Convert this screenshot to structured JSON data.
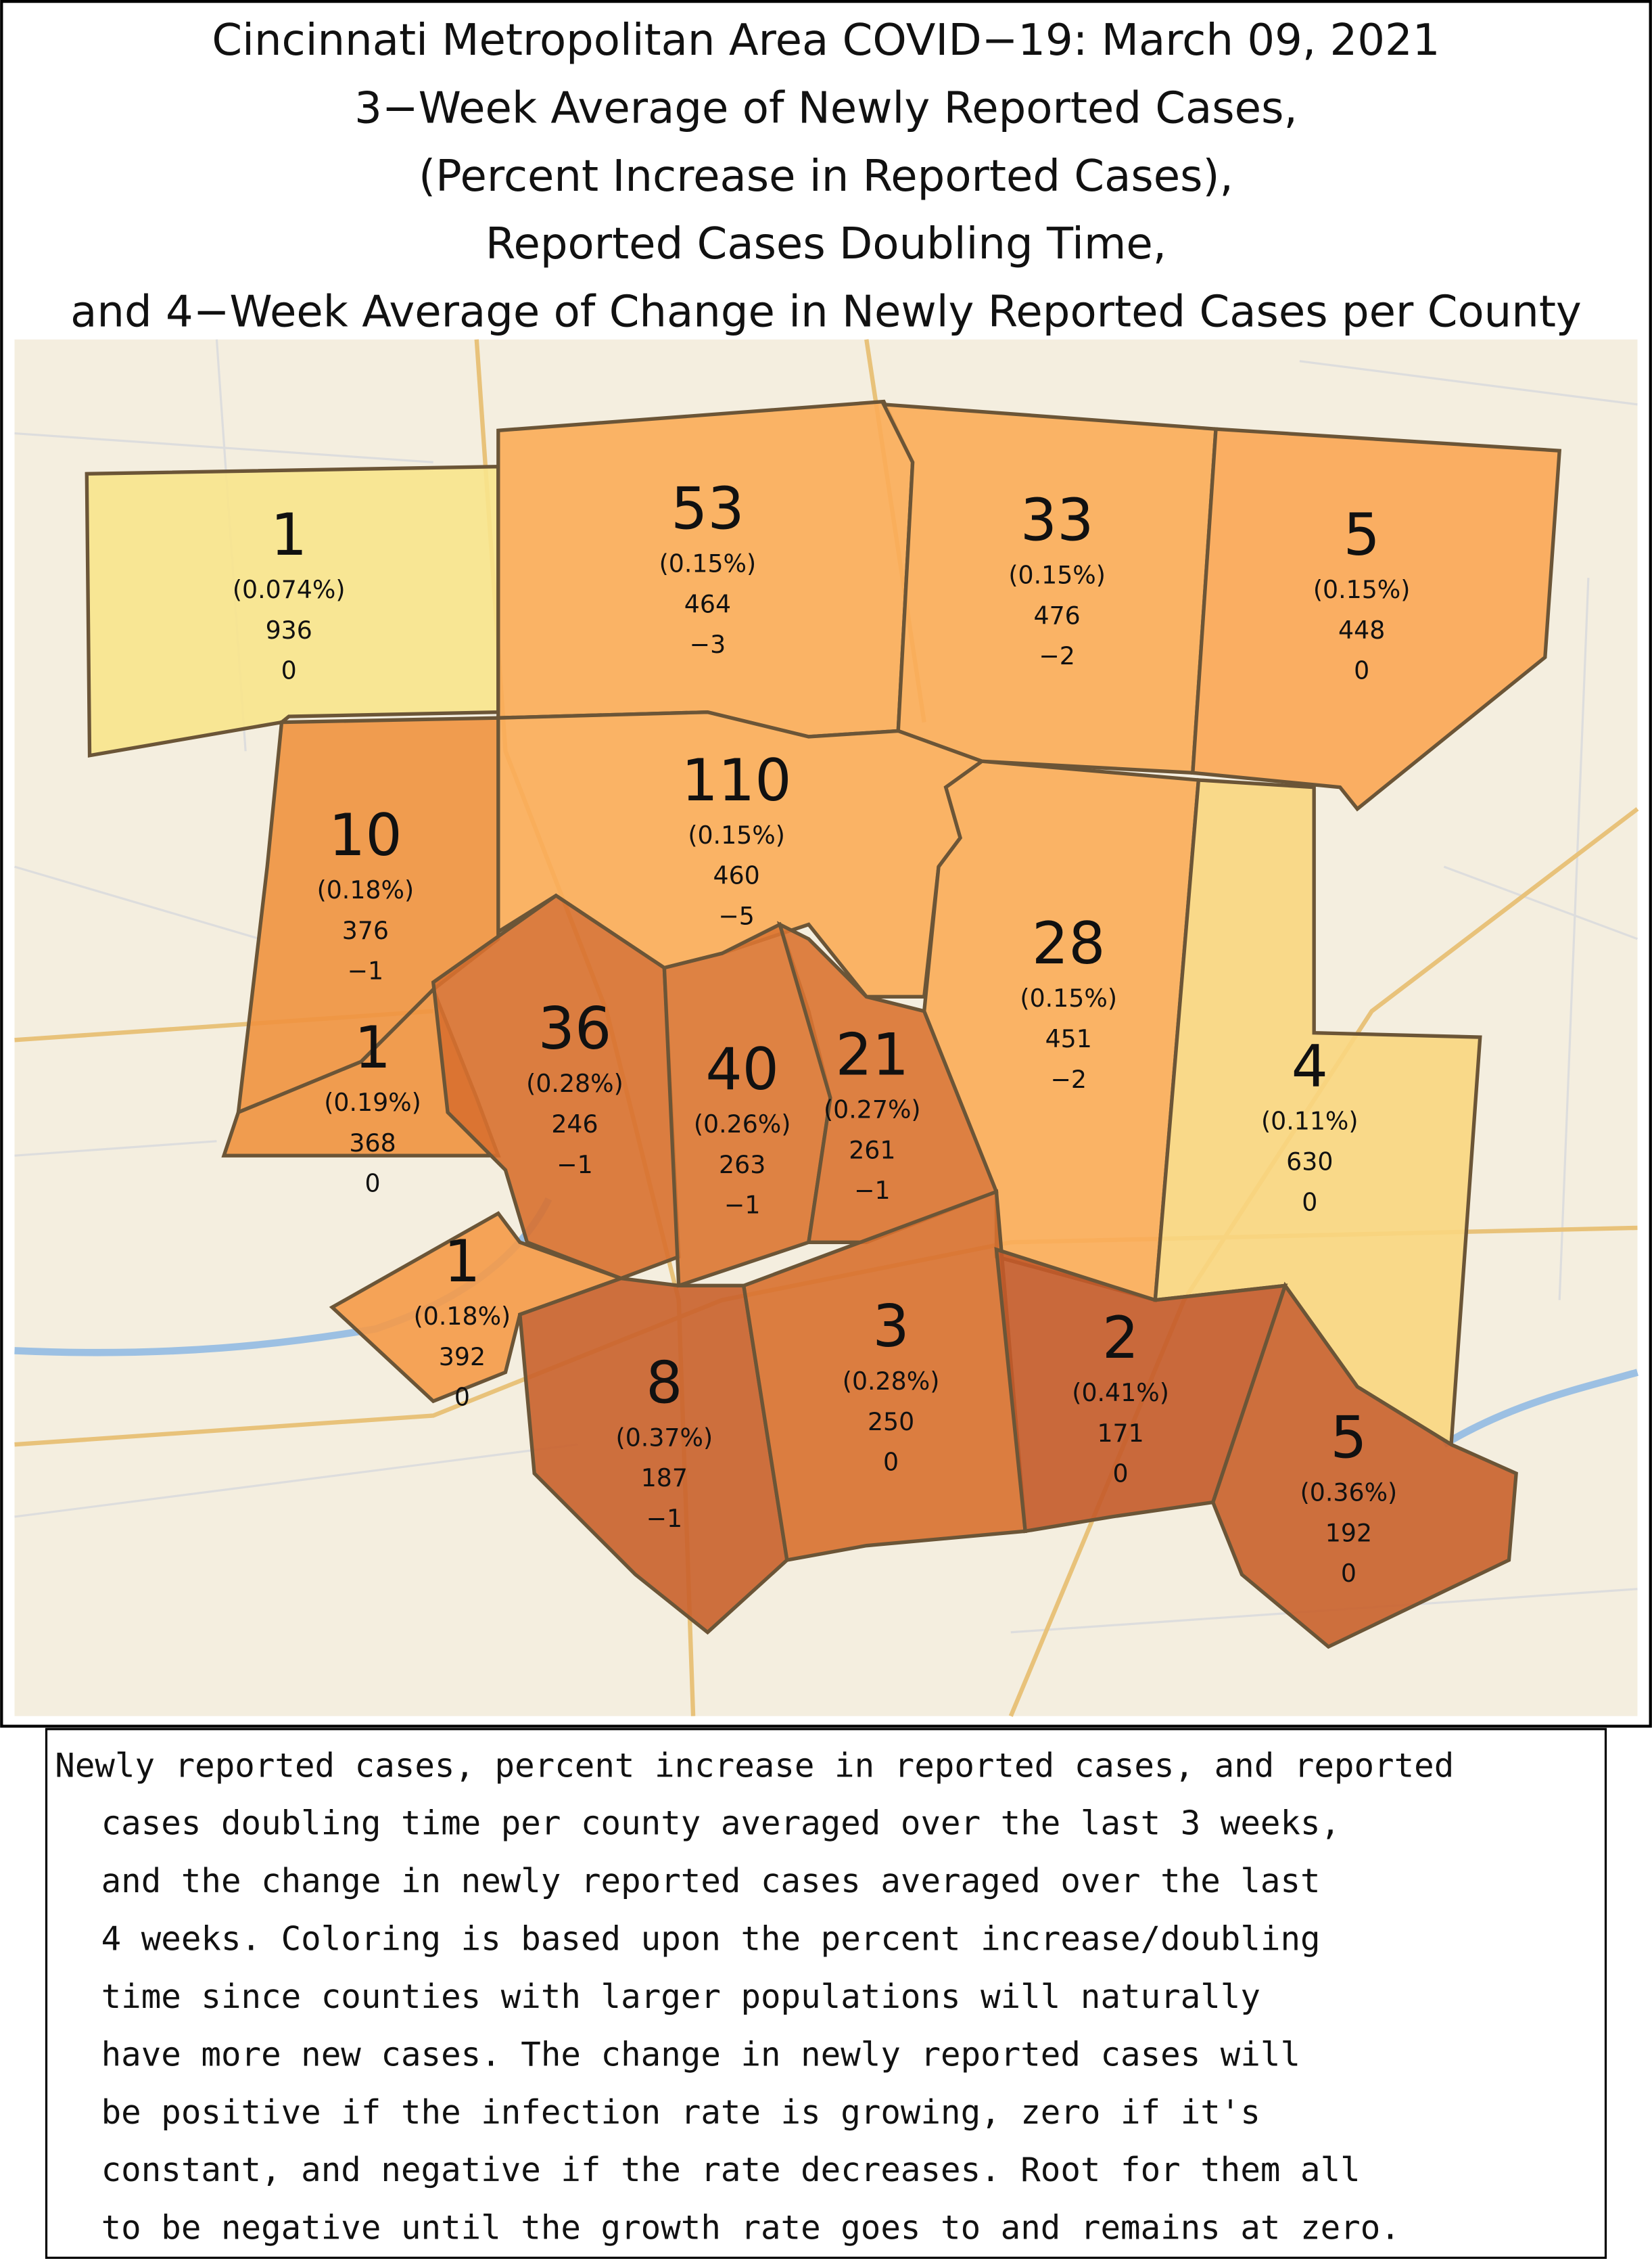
{
  "title": {
    "lines": [
      "Cincinnati Metropolitan Area COVID−19: March 09, 2021",
      "3−Week Average of Newly Reported Cases,",
      "(Percent Increase in Reported Cases),",
      "Reported Cases Doubling Time,",
      "and 4−Week Average of Change in Newly Reported Cases per County"
    ]
  },
  "counties": [
    {
      "cases": "1",
      "percent": "(0.074%)",
      "doubling": "936",
      "change": "0"
    },
    {
      "cases": "53",
      "percent": "(0.15%)",
      "doubling": "464",
      "change": "−3"
    },
    {
      "cases": "33",
      "percent": "(0.15%)",
      "doubling": "476",
      "change": "−2"
    },
    {
      "cases": "5",
      "percent": "(0.15%)",
      "doubling": "448",
      "change": "0"
    },
    {
      "cases": "110",
      "percent": "(0.15%)",
      "doubling": "460",
      "change": "−5"
    },
    {
      "cases": "10",
      "percent": "(0.18%)",
      "doubling": "376",
      "change": "−1"
    },
    {
      "cases": "1",
      "percent": "(0.19%)",
      "doubling": "368",
      "change": "0"
    },
    {
      "cases": "36",
      "percent": "(0.28%)",
      "doubling": "246",
      "change": "−1"
    },
    {
      "cases": "40",
      "percent": "(0.26%)",
      "doubling": "263",
      "change": "−1"
    },
    {
      "cases": "21",
      "percent": "(0.27%)",
      "doubling": "261",
      "change": "−1"
    },
    {
      "cases": "28",
      "percent": "(0.15%)",
      "doubling": "451",
      "change": "−2"
    },
    {
      "cases": "4",
      "percent": "(0.11%)",
      "doubling": "630",
      "change": "0"
    },
    {
      "cases": "1",
      "percent": "(0.18%)",
      "doubling": "392",
      "change": "0"
    },
    {
      "cases": "8",
      "percent": "(0.37%)",
      "doubling": "187",
      "change": "−1"
    },
    {
      "cases": "3",
      "percent": "(0.28%)",
      "doubling": "250",
      "change": "0"
    },
    {
      "cases": "2",
      "percent": "(0.41%)",
      "doubling": "171",
      "change": "0"
    },
    {
      "cases": "5",
      "percent": "(0.36%)",
      "doubling": "192",
      "change": "0"
    }
  ],
  "caption": {
    "lines": [
      "Newly reported cases, percent increase in reported cases, and reported",
      "cases doubling time per county averaged over the last 3 weeks,",
      "and the change in newly reported cases averaged over the last",
      "4 weeks. Coloring is based upon the percent increase/doubling",
      "time since counties with larger populations will naturally",
      "have more new cases. The change in newly reported cases will",
      "be positive if the infection rate is growing, zero if it's",
      "constant, and negative if the rate decreases. Root for them all",
      "to be negative until the growth rate goes to and remains at zero."
    ]
  }
}
